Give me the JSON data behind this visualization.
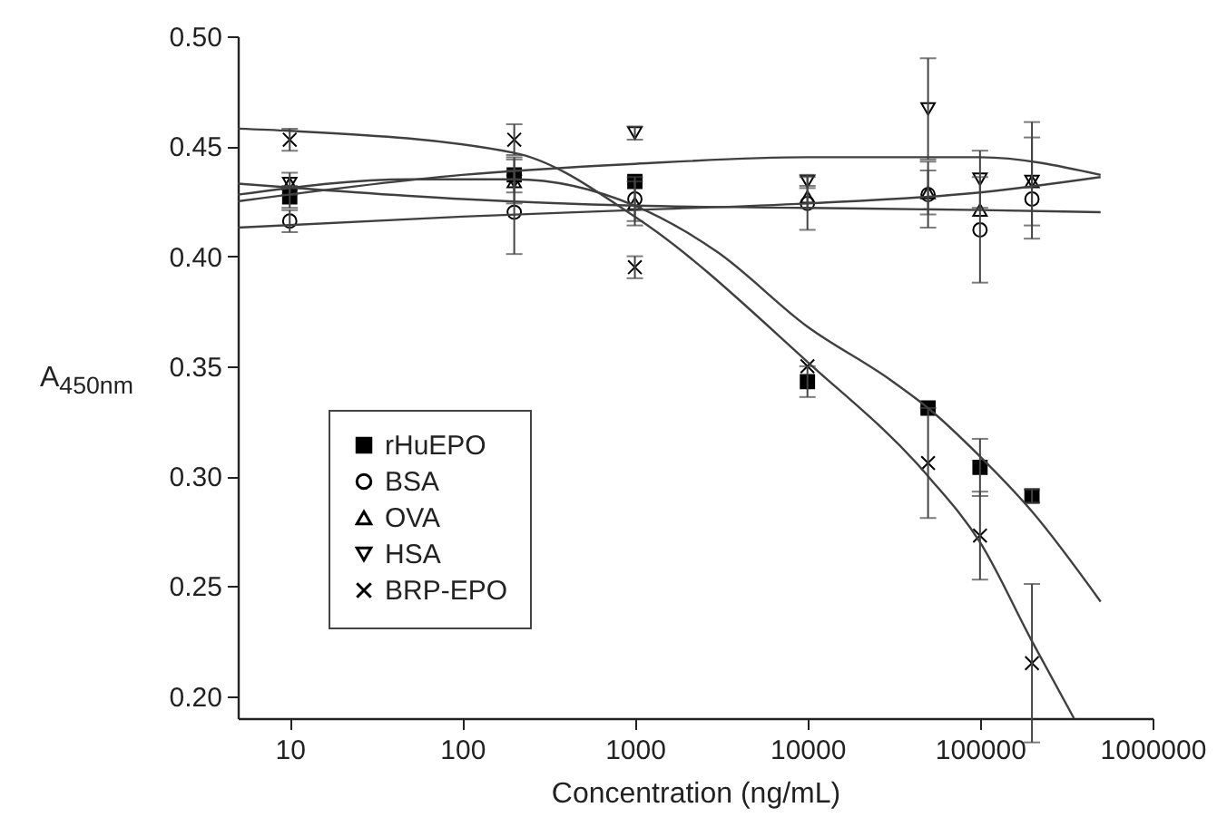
{
  "chart_data": {
    "type": "scatter",
    "xlabel": "Concentration (ng/mL)",
    "ylabel": "A$_{450nm}$",
    "log": "x",
    "xlim": [
      5,
      1000000
    ],
    "ylim": [
      0.19,
      0.5
    ],
    "xticks": [
      10,
      100,
      1000,
      10000,
      100000,
      1000000
    ],
    "yticks": [
      {
        "value": 0.2,
        "label": "0.20"
      },
      0.25,
      {
        "value": 0.3,
        "label": "0.30"
      },
      0.35,
      {
        "value": 0.4,
        "label": "0.40"
      },
      0.45,
      {
        "value": 0.5,
        "label": "0.50"
      }
    ],
    "grid": false,
    "legend": "bottom left",
    "x": [
      10,
      200,
      1000,
      10000,
      50000,
      100000,
      200000
    ],
    "series": [
      {
        "name": "rHuEPO",
        "color": "#000000",
        "marker": "square",
        "values": [
          0.427,
          0.437,
          0.434,
          0.343,
          0.331,
          0.304,
          0.291
        ],
        "errors": [
          0.005,
          0.008,
          null,
          0.007,
          null,
          0.013,
          0.003
        ]
      },
      {
        "name": "BSA",
        "color": "#000000",
        "marker": "circle",
        "values": [
          0.416,
          0.42,
          0.426,
          0.424,
          0.428,
          0.412,
          0.426
        ],
        "errors": [
          0.005,
          0.019,
          0.01,
          0.012,
          0.015,
          0.024,
          [
            0.408,
            0.461
          ]
        ]
      },
      {
        "name": "OVA",
        "color": "#000000",
        "marker": "triangle",
        "values": [
          0.433,
          0.434,
          0.424,
          0.427,
          0.429,
          0.421,
          0.434
        ],
        "errors": [
          null,
          null,
          0.01,
          0.005,
          0.01,
          null,
          null
        ]
      },
      {
        "name": "HSA",
        "color": "#000000",
        "marker": "triangle-down",
        "values": [
          0.433,
          0.434,
          0.456,
          0.434,
          0.467,
          0.435,
          0.434
        ],
        "errors": [
          0.005,
          0.01,
          0.003,
          0.003,
          0.023,
          0.013,
          0.02
        ]
      },
      {
        "name": "BRP-EPO",
        "color": "#000000",
        "marker": "cross",
        "values": [
          0.453,
          0.453,
          0.395,
          0.35,
          0.306,
          0.273,
          0.215
        ],
        "errors": [
          0.005,
          0.007,
          0.005,
          null,
          0.025,
          0.02,
          0.036
        ]
      },
      {
        "type": "line",
        "color": "#404040",
        "x": [
          5,
          50,
          200,
          1000,
          3000,
          10000,
          30000,
          50000,
          100000,
          200000,
          500000
        ],
        "values": [
          0.428,
          0.435,
          0.435,
          0.423,
          0.402,
          0.368,
          0.344,
          0.331,
          0.309,
          0.284,
          0.243
        ]
      },
      {
        "type": "line",
        "color": "#404040",
        "x": [
          5,
          10,
          200,
          1000,
          10000,
          50000,
          100000,
          200000,
          350000
        ],
        "values": [
          0.458,
          0.457,
          0.447,
          0.418,
          0.352,
          0.3,
          0.27,
          0.225,
          0.19
        ]
      },
      {
        "type": "line",
        "color": "#404040",
        "x": [
          5,
          100,
          1000,
          10000,
          100000,
          500000
        ],
        "values": [
          0.425,
          0.437,
          0.442,
          0.445,
          0.445,
          0.437
        ]
      },
      {
        "type": "line",
        "color": "#404040",
        "x": [
          5,
          100,
          1000,
          10000,
          100000,
          500000
        ],
        "values": [
          0.413,
          0.418,
          0.421,
          0.424,
          0.429,
          0.436
        ]
      },
      {
        "type": "line",
        "color": "#404040",
        "x": [
          5,
          100,
          1000,
          10000,
          100000,
          500000
        ],
        "values": [
          0.433,
          0.426,
          0.423,
          0.422,
          0.421,
          0.42
        ]
      }
    ]
  }
}
